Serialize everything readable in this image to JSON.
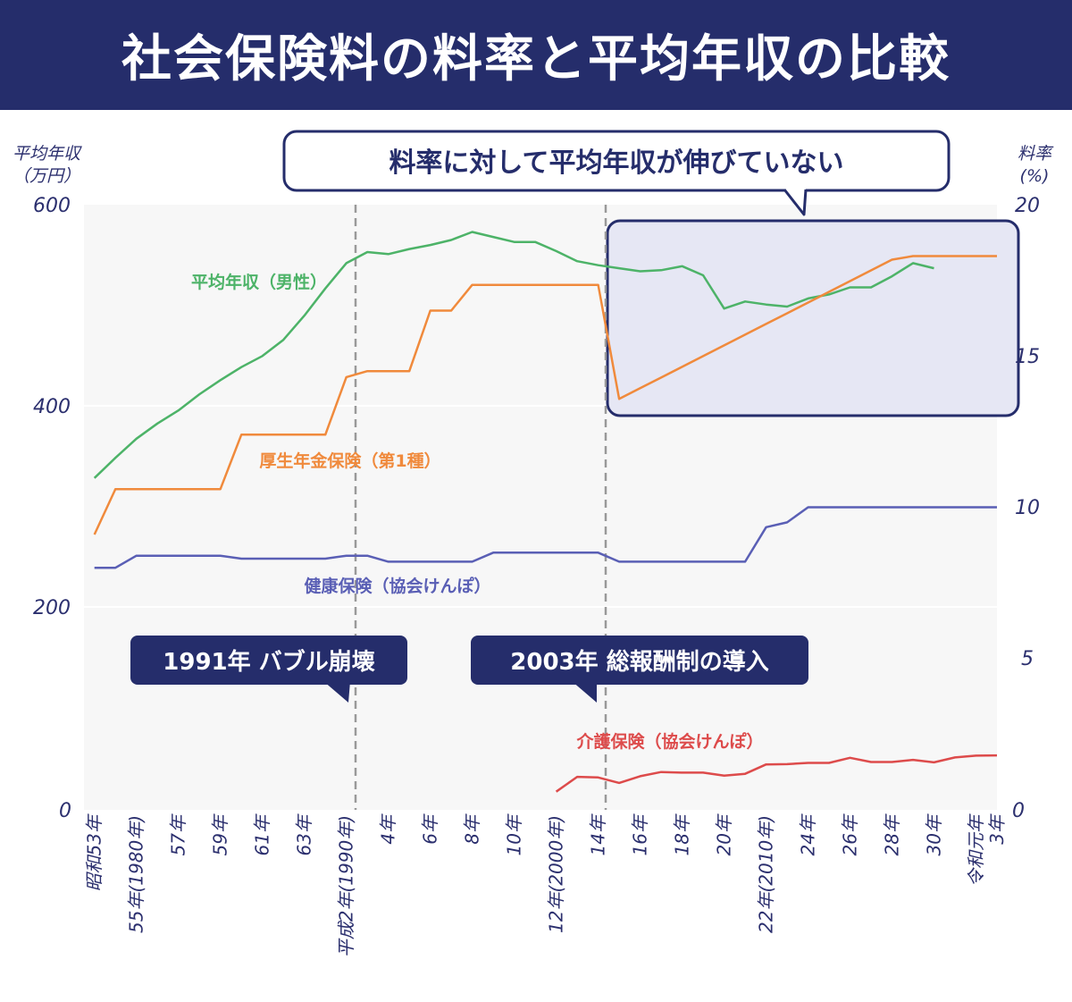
{
  "title": "社会保険料の料率と平均年収の比較",
  "left_axis": {
    "unit_line1": "平均年収",
    "unit_line2": "（万円）",
    "ticks": [
      "600",
      "400",
      "200",
      "0"
    ]
  },
  "right_axis": {
    "unit_line1": "料率",
    "unit_line2": "(%)",
    "ticks": [
      "20",
      "15",
      "10",
      "5",
      "0"
    ]
  },
  "x_tick_labels": [
    "昭和53年",
    "55年(1980年)",
    "57年",
    "59年",
    "61年",
    "63年",
    "平成2年(1990年)",
    "4年",
    "6年",
    "8年",
    "10年",
    "12年(2000年)",
    "14年",
    "16年",
    "18年",
    "20年",
    "22年(2010年)",
    "24年",
    "26年",
    "28年",
    "30年",
    "令和元年",
    "3年"
  ],
  "annotations": {
    "headline": "料率に対して平均年収が伸びていない",
    "bubble": "1991年 バブル崩壊",
    "reform": "2003年 総報酬制の導入"
  },
  "colors": {
    "income": "#4db368",
    "pension": "#f08a3c",
    "health": "#5a5fb5",
    "care": "#dd4b4b",
    "navy": "#252d6b",
    "highlight_fill": "#e6e7f4"
  },
  "chart_data": {
    "type": "line",
    "x": [
      1978,
      1979,
      1980,
      1981,
      1982,
      1983,
      1984,
      1985,
      1986,
      1987,
      1988,
      1989,
      1990,
      1991,
      1992,
      1993,
      1994,
      1995,
      1996,
      1997,
      1998,
      1999,
      2000,
      2001,
      2002,
      2003,
      2004,
      2005,
      2006,
      2007,
      2008,
      2009,
      2010,
      2011,
      2012,
      2013,
      2014,
      2015,
      2016,
      2017,
      2018,
      2019,
      2020,
      2021
    ],
    "xlim": [
      1977.5,
      2021
    ],
    "series": [
      {
        "name": "平均年収（男性）",
        "axis": "left",
        "values": [
          329,
          349,
          368,
          383,
          396,
          412,
          426,
          439,
          450,
          466,
          490,
          517,
          542,
          553,
          551,
          556,
          560,
          565,
          573,
          568,
          563,
          563,
          554,
          544,
          540,
          537,
          534,
          535,
          539,
          530,
          497,
          504,
          501,
          499,
          507,
          511,
          518,
          518,
          529,
          542,
          537,
          null,
          null,
          null
        ]
      },
      {
        "name": "厚生年金保険（第1種）",
        "axis": "right",
        "values": [
          9.1,
          10.6,
          10.6,
          10.6,
          10.6,
          10.6,
          10.6,
          12.4,
          12.4,
          12.4,
          12.4,
          12.4,
          14.3,
          14.5,
          14.5,
          14.5,
          16.5,
          16.5,
          17.35,
          17.35,
          17.35,
          17.35,
          17.35,
          17.35,
          17.35,
          13.58,
          13.934,
          14.288,
          14.642,
          14.996,
          15.35,
          15.704,
          16.058,
          16.412,
          16.766,
          17.12,
          17.474,
          17.828,
          18.182,
          18.3,
          18.3,
          18.3,
          18.3,
          18.3
        ]
      },
      {
        "name": "健康保険（協会けんぽ）",
        "axis": "right",
        "values": [
          8.0,
          8.0,
          8.4,
          8.4,
          8.4,
          8.4,
          8.4,
          8.3,
          8.3,
          8.3,
          8.3,
          8.3,
          8.4,
          8.4,
          8.2,
          8.2,
          8.2,
          8.2,
          8.2,
          8.5,
          8.5,
          8.5,
          8.5,
          8.5,
          8.5,
          8.2,
          8.2,
          8.2,
          8.2,
          8.2,
          8.2,
          8.2,
          9.34,
          9.5,
          10.0,
          10.0,
          10.0,
          10.0,
          10.0,
          10.0,
          10.0,
          10.0,
          10.0,
          10.0
        ]
      },
      {
        "name": "介護保険（協会けんぽ）",
        "axis": "right",
        "values": [
          null,
          null,
          null,
          null,
          null,
          null,
          null,
          null,
          null,
          null,
          null,
          null,
          null,
          null,
          null,
          null,
          null,
          null,
          null,
          null,
          null,
          null,
          0.6,
          1.09,
          1.07,
          0.89,
          1.11,
          1.25,
          1.23,
          1.23,
          1.13,
          1.19,
          1.5,
          1.51,
          1.55,
          1.55,
          1.72,
          1.58,
          1.58,
          1.65,
          1.57,
          1.73,
          1.79,
          1.8
        ]
      }
    ],
    "left_ylim": [
      0,
      600
    ],
    "right_ylim": [
      0,
      20
    ],
    "grid": "horizontal"
  }
}
